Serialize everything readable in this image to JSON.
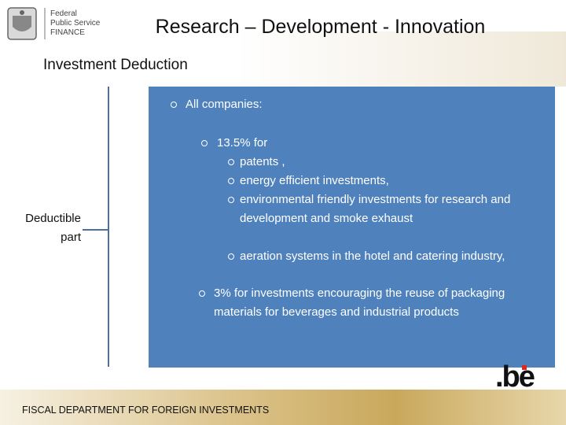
{
  "header": {
    "logo_lines": [
      "Federal",
      "Public Service",
      "FINANCE"
    ],
    "title": "Research – Development - Innovation"
  },
  "subtitle": "Investment Deduction",
  "side_label": "Deductible part",
  "content": {
    "heading": "All companies:",
    "items": [
      {
        "text": "13.5% for",
        "subitems": [
          "patents ,",
          "energy efficient investments,",
          "environmental friendly investments for research and development and smoke exhaust",
          "aeration systems in the hotel and catering industry,"
        ]
      },
      {
        "text": "3% for investments encouraging the reuse of packaging materials for beverages and industrial products",
        "subitems": []
      }
    ]
  },
  "footer": {
    "text": "FISCAL DEPARTMENT FOR FOREIGN INVESTMENTS",
    "brand": ".be"
  }
}
